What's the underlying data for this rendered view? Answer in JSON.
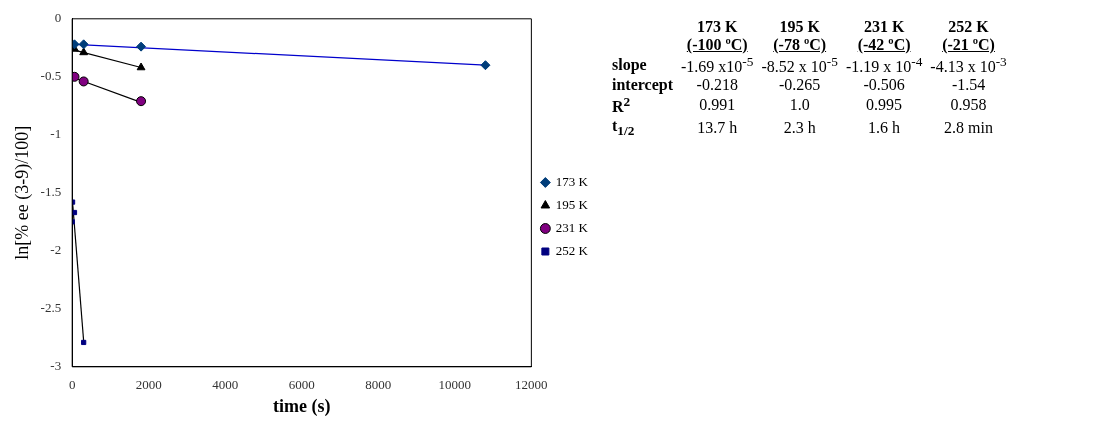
{
  "chart_data": [
    {
      "type": "scatter",
      "xlabel": "time (s)",
      "ylabel": "ln[% ee (3-9)/100]",
      "xlim": [
        0,
        12000
      ],
      "xticks": [
        0,
        2000,
        4000,
        6000,
        8000,
        10000,
        12000
      ],
      "ylim": [
        -3,
        0
      ],
      "yticks": [
        0,
        -0.5,
        -1,
        -1.5,
        -2,
        -2.5,
        -3
      ],
      "grid": false,
      "legend": "right",
      "series": [
        {
          "name": "173 K",
          "color": "#003d7a",
          "marker": "diamond",
          "x": [
            60,
            300,
            1800,
            10800
          ],
          "values": [
            -0.22,
            -0.22,
            -0.24,
            -0.4
          ]
        },
        {
          "name": "195 K",
          "color": "#000000",
          "marker": "triangle",
          "x": [
            60,
            300,
            1800
          ],
          "values": [
            -0.26,
            -0.29,
            -0.42
          ]
        },
        {
          "name": "231 K",
          "color": "#800080",
          "marker": "circle",
          "x": [
            60,
            300,
            1800
          ],
          "values": [
            -0.5,
            -0.54,
            -0.71
          ]
        },
        {
          "name": "252 K",
          "color": "#000080",
          "marker": "square",
          "x": [
            10,
            60,
            0,
            300
          ],
          "values": [
            -1.58,
            -1.67,
            -1.75,
            -2.79
          ]
        },
        {
          "type": "line",
          "color": "#0000cc",
          "marker": "none",
          "x": [
            60,
            10800
          ],
          "values": [
            -0.22,
            -0.4
          ]
        },
        {
          "type": "line",
          "color": "#000000",
          "marker": "none",
          "x": [
            60,
            1800
          ],
          "values": [
            -0.27,
            -0.42
          ]
        },
        {
          "type": "line",
          "color": "#000000",
          "marker": "none",
          "x": [
            60,
            1800
          ],
          "values": [
            -0.51,
            -0.72
          ]
        },
        {
          "type": "line",
          "color": "#000000",
          "marker": "none",
          "x": [
            0,
            300
          ],
          "values": [
            -1.54,
            -2.78
          ]
        }
      ]
    },
    {
      "type": "other",
      "categories": [
        "173 K\n(-100 ºC)",
        "195 K\n(-78 ºC)",
        "231 K\n(-42 ºC)",
        "252 K\n(-21 ºC)"
      ],
      "y_categories": [
        "slope",
        "intercept",
        "R$^{2}$",
        "t$_{1/2}$"
      ],
      "cell_labels": [
        [
          "-1.69 x10$^{-5}$",
          "-8.52 x 10$^{-5}$",
          "-1.19 x 10$^{-4}$",
          "-4.13 x 10$^{-3}$"
        ],
        [
          "-0.218",
          "-0.265",
          "-0.506",
          "-1.54"
        ],
        [
          "0.991",
          "1.0",
          "0.995",
          "0.958"
        ],
        [
          "13.7 h",
          "2.3 h",
          "1.6 h",
          "2.8 min"
        ]
      ]
    }
  ]
}
